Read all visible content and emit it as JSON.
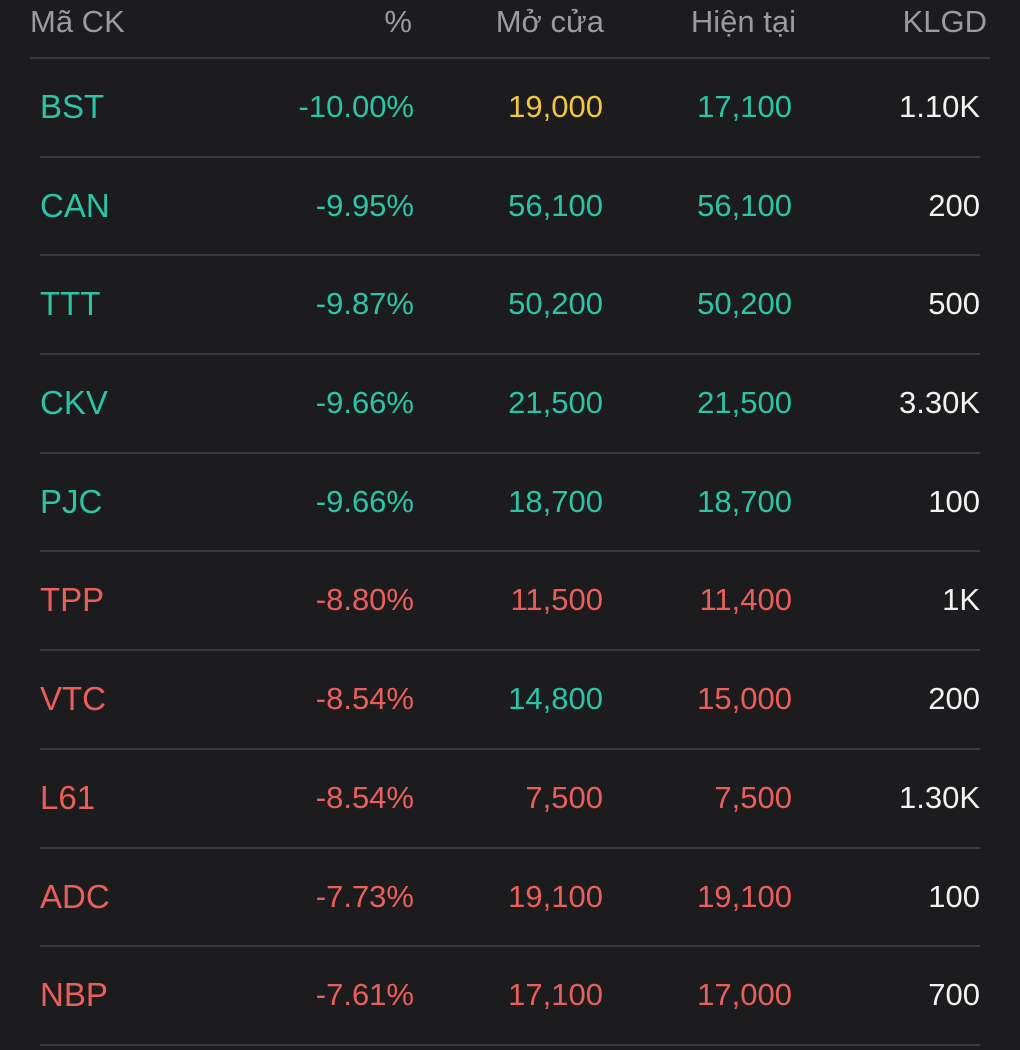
{
  "columns": {
    "symbol": "Mã CK",
    "percent": "%",
    "open": "Mở cửa",
    "current": "Hiện tại",
    "volume": "KLGD"
  },
  "colors": {
    "teal": "#2bc4a6",
    "red": "#ea5f5a",
    "yellow": "#f3c63f",
    "white": "#f2f2f2"
  },
  "rows": [
    {
      "symbol": "BST",
      "symbol_color": "teal",
      "percent": "-10.00%",
      "percent_color": "teal",
      "open": "19,000",
      "open_color": "yellow",
      "current": "17,100",
      "current_color": "teal",
      "volume": "1.10K"
    },
    {
      "symbol": "CAN",
      "symbol_color": "teal",
      "percent": "-9.95%",
      "percent_color": "teal",
      "open": "56,100",
      "open_color": "teal",
      "current": "56,100",
      "current_color": "teal",
      "volume": "200"
    },
    {
      "symbol": "TTT",
      "symbol_color": "teal",
      "percent": "-9.87%",
      "percent_color": "teal",
      "open": "50,200",
      "open_color": "teal",
      "current": "50,200",
      "current_color": "teal",
      "volume": "500"
    },
    {
      "symbol": "CKV",
      "symbol_color": "teal",
      "percent": "-9.66%",
      "percent_color": "teal",
      "open": "21,500",
      "open_color": "teal",
      "current": "21,500",
      "current_color": "teal",
      "volume": "3.30K"
    },
    {
      "symbol": "PJC",
      "symbol_color": "teal",
      "percent": "-9.66%",
      "percent_color": "teal",
      "open": "18,700",
      "open_color": "teal",
      "current": "18,700",
      "current_color": "teal",
      "volume": "100"
    },
    {
      "symbol": "TPP",
      "symbol_color": "red",
      "percent": "-8.80%",
      "percent_color": "red",
      "open": "11,500",
      "open_color": "red",
      "current": "11,400",
      "current_color": "red",
      "volume": "1K"
    },
    {
      "symbol": "VTC",
      "symbol_color": "red",
      "percent": "-8.54%",
      "percent_color": "red",
      "open": "14,800",
      "open_color": "teal",
      "current": "15,000",
      "current_color": "red",
      "volume": "200"
    },
    {
      "symbol": "L61",
      "symbol_color": "red",
      "percent": "-8.54%",
      "percent_color": "red",
      "open": "7,500",
      "open_color": "red",
      "current": "7,500",
      "current_color": "red",
      "volume": "1.30K"
    },
    {
      "symbol": "ADC",
      "symbol_color": "red",
      "percent": "-7.73%",
      "percent_color": "red",
      "open": "19,100",
      "open_color": "red",
      "current": "19,100",
      "current_color": "red",
      "volume": "100"
    },
    {
      "symbol": "NBP",
      "symbol_color": "red",
      "percent": "-7.61%",
      "percent_color": "red",
      "open": "17,100",
      "open_color": "red",
      "current": "17,000",
      "current_color": "red",
      "volume": "700"
    }
  ]
}
